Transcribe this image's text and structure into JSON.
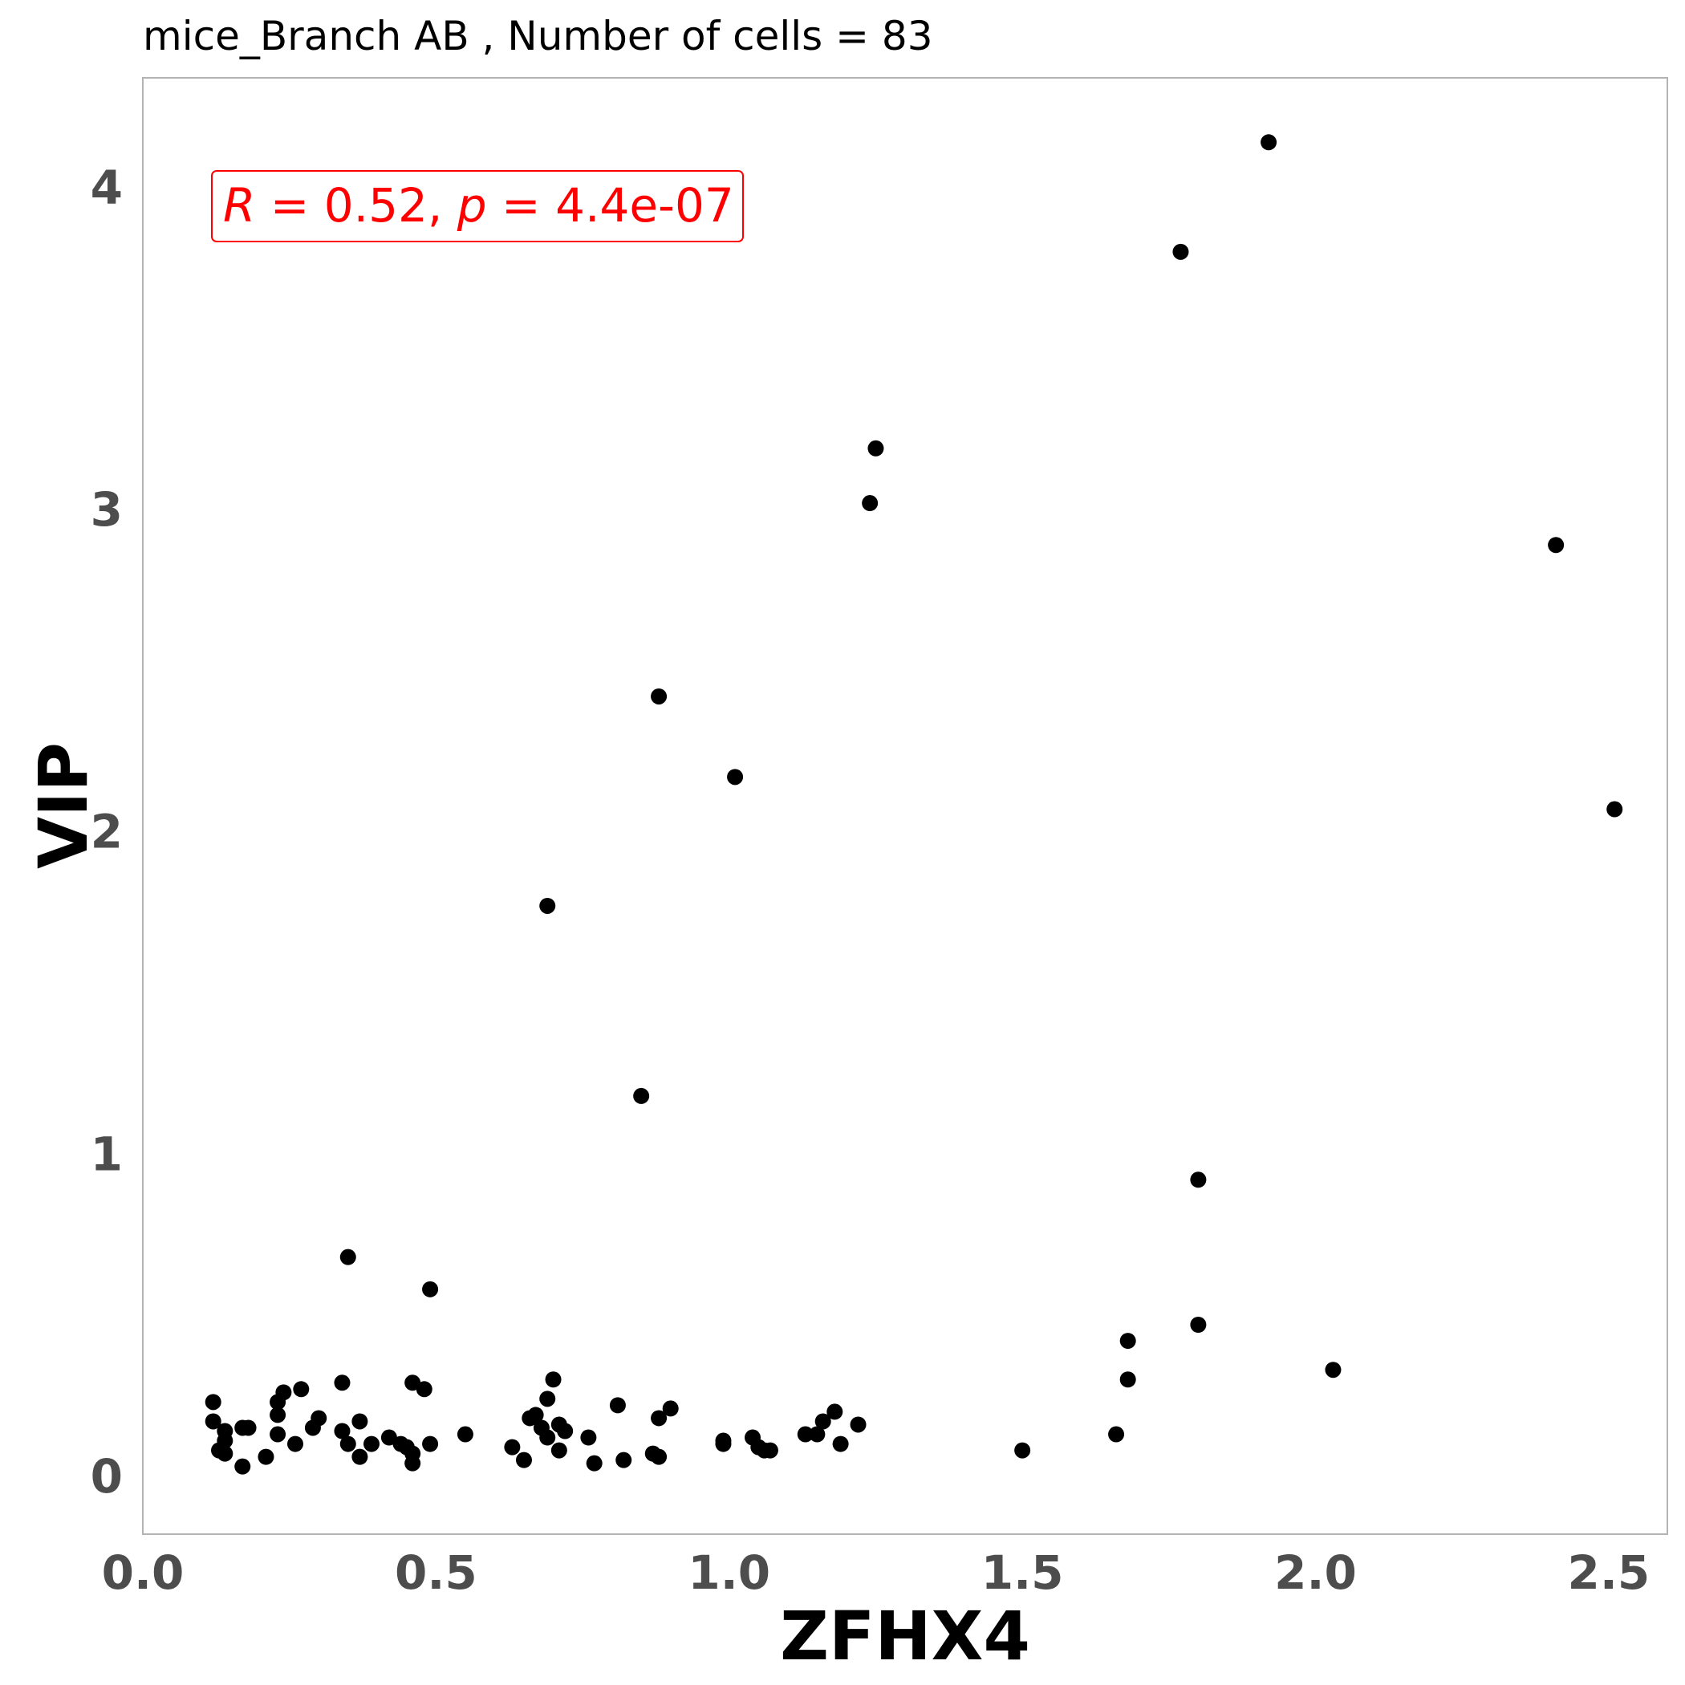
{
  "chart_data": {
    "type": "scatter",
    "title": "mice_Branch AB , Number of cells =  83",
    "xlabel": "ZFHX4",
    "ylabel": "VIP",
    "xlim": [
      0.0,
      2.6
    ],
    "ylim": [
      -0.17,
      4.35
    ],
    "xticks": [
      "0.0",
      "0.5",
      "1.0",
      "1.5",
      "2.0",
      "2.5"
    ],
    "yticks": [
      "0",
      "1",
      "2",
      "3",
      "4"
    ],
    "grid": false,
    "annotation": {
      "r_symbol": "R",
      "r_value": " = 0.52, ",
      "p_symbol": "p",
      "p_value": " = 4.4e-07"
    },
    "colors": {
      "points": "#000000",
      "annotation": "#ff0000",
      "frame": "#b3b3b3",
      "ticks": "#4d4d4d"
    },
    "points": [
      [
        1.92,
        4.15
      ],
      [
        1.77,
        3.81
      ],
      [
        1.25,
        3.2
      ],
      [
        1.24,
        3.03
      ],
      [
        2.41,
        2.9
      ],
      [
        0.88,
        2.43
      ],
      [
        1.01,
        2.18
      ],
      [
        2.51,
        2.08
      ],
      [
        0.69,
        1.78
      ],
      [
        0.85,
        1.19
      ],
      [
        1.8,
        0.93
      ],
      [
        0.35,
        0.69
      ],
      [
        0.49,
        0.59
      ],
      [
        1.8,
        0.48
      ],
      [
        1.68,
        0.43
      ],
      [
        2.03,
        0.34
      ],
      [
        1.68,
        0.31
      ],
      [
        0.7,
        0.31
      ],
      [
        0.34,
        0.3
      ],
      [
        0.46,
        0.3
      ],
      [
        0.48,
        0.28
      ],
      [
        0.27,
        0.28
      ],
      [
        0.24,
        0.27
      ],
      [
        0.69,
        0.25
      ],
      [
        0.12,
        0.24
      ],
      [
        0.23,
        0.24
      ],
      [
        0.81,
        0.23
      ],
      [
        0.9,
        0.22
      ],
      [
        1.18,
        0.21
      ],
      [
        0.23,
        0.2
      ],
      [
        0.67,
        0.2
      ],
      [
        0.66,
        0.19
      ],
      [
        0.88,
        0.19
      ],
      [
        0.3,
        0.19
      ],
      [
        1.16,
        0.18
      ],
      [
        0.12,
        0.18
      ],
      [
        0.37,
        0.18
      ],
      [
        1.22,
        0.17
      ],
      [
        0.71,
        0.17
      ],
      [
        0.18,
        0.16
      ],
      [
        0.68,
        0.16
      ],
      [
        0.29,
        0.16
      ],
      [
        0.17,
        0.16
      ],
      [
        0.14,
        0.15
      ],
      [
        0.34,
        0.15
      ],
      [
        0.72,
        0.15
      ],
      [
        0.23,
        0.14
      ],
      [
        0.55,
        0.14
      ],
      [
        1.13,
        0.14
      ],
      [
        1.15,
        0.14
      ],
      [
        1.66,
        0.14
      ],
      [
        1.04,
        0.13
      ],
      [
        0.76,
        0.13
      ],
      [
        0.42,
        0.13
      ],
      [
        0.69,
        0.13
      ],
      [
        0.14,
        0.12
      ],
      [
        0.99,
        0.12
      ],
      [
        1.19,
        0.11
      ],
      [
        0.39,
        0.11
      ],
      [
        0.49,
        0.11
      ],
      [
        0.26,
        0.11
      ],
      [
        0.35,
        0.11
      ],
      [
        0.44,
        0.11
      ],
      [
        0.99,
        0.11
      ],
      [
        1.05,
        0.1
      ],
      [
        0.45,
        0.1
      ],
      [
        0.63,
        0.1
      ],
      [
        0.13,
        0.09
      ],
      [
        1.07,
        0.09
      ],
      [
        1.06,
        0.09
      ],
      [
        1.5,
        0.09
      ],
      [
        0.71,
        0.09
      ],
      [
        0.46,
        0.08
      ],
      [
        0.14,
        0.08
      ],
      [
        0.87,
        0.08
      ],
      [
        0.21,
        0.07
      ],
      [
        0.37,
        0.07
      ],
      [
        0.65,
        0.06
      ],
      [
        0.82,
        0.06
      ],
      [
        0.77,
        0.05
      ],
      [
        0.46,
        0.05
      ],
      [
        0.17,
        0.04
      ],
      [
        0.88,
        0.07
      ]
    ]
  }
}
